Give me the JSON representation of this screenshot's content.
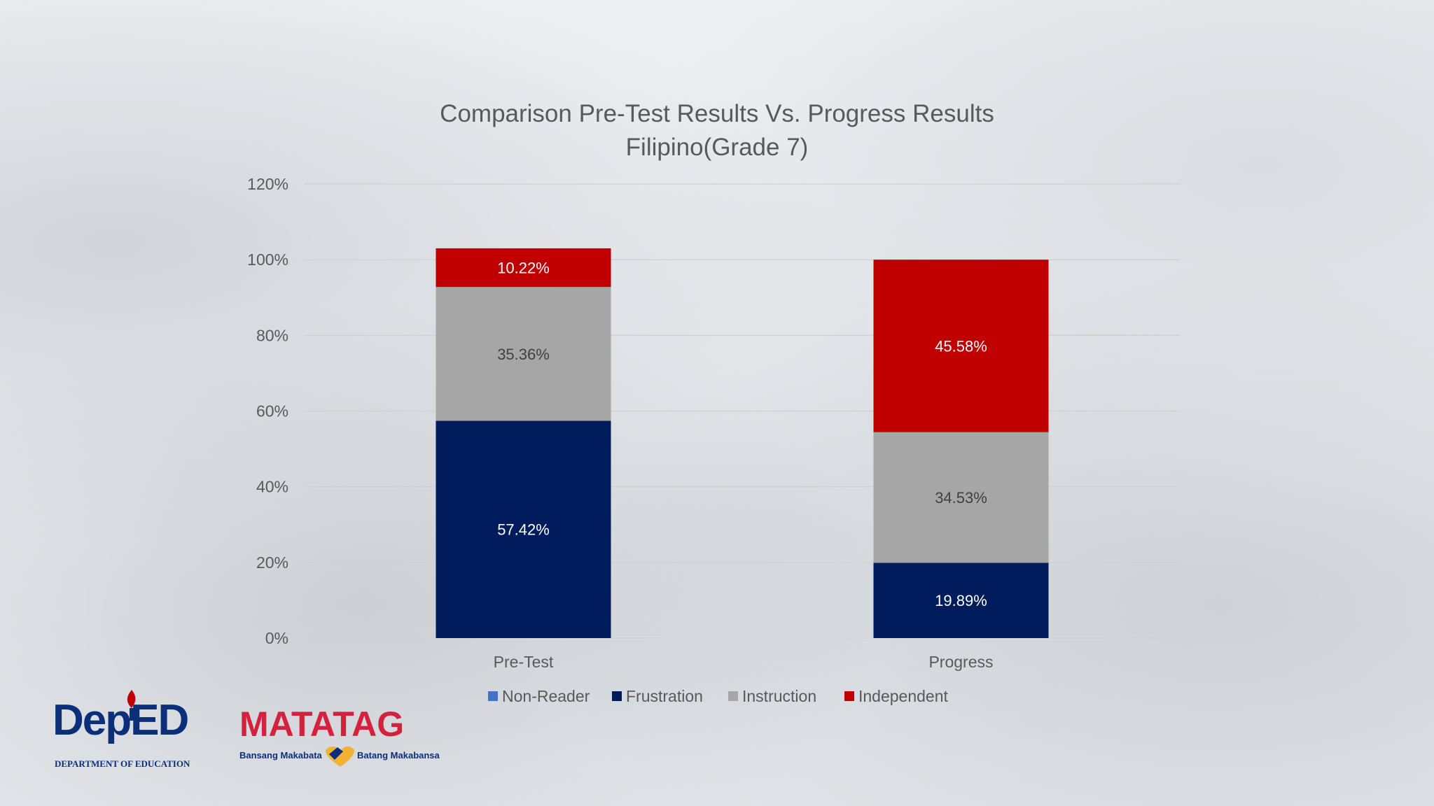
{
  "chart_data": {
    "type": "bar",
    "stacked": true,
    "title": "Comparison Pre-Test Results Vs. Progress Results",
    "subtitle": "Filipino(Grade 7)",
    "categories": [
      "Pre-Test",
      "Progress"
    ],
    "series": [
      {
        "name": "Non-Reader",
        "values": [
          0,
          0
        ],
        "labels": [
          "",
          ""
        ],
        "color": "#4472c4"
      },
      {
        "name": "Frustration",
        "values": [
          57.42,
          19.89
        ],
        "labels": [
          "57.42%",
          "19.89%"
        ],
        "color": "#001c5c"
      },
      {
        "name": "Instruction",
        "values": [
          35.36,
          34.53
        ],
        "labels": [
          "35.36%",
          "34.53%"
        ],
        "color": "#a6a6a6"
      },
      {
        "name": "Independent",
        "values": [
          10.22,
          45.58
        ],
        "labels": [
          "10.22%",
          "45.58%"
        ],
        "color": "#c00000"
      }
    ],
    "ylim": [
      0,
      120
    ],
    "yticks": [
      0,
      20,
      40,
      60,
      80,
      100,
      120
    ],
    "ytick_labels": [
      "0%",
      "20%",
      "40%",
      "60%",
      "80%",
      "100%",
      "120%"
    ],
    "xlabel": "",
    "ylabel": "",
    "grid": true,
    "legend_position": "bottom"
  },
  "logos": {
    "deped_main": "DepED",
    "deped_sub": "DEPARTMENT OF EDUCATION",
    "matatag_main": "MATATAG",
    "matatag_left": "Bansang Makabata",
    "matatag_right": "Batang Makabansa"
  }
}
